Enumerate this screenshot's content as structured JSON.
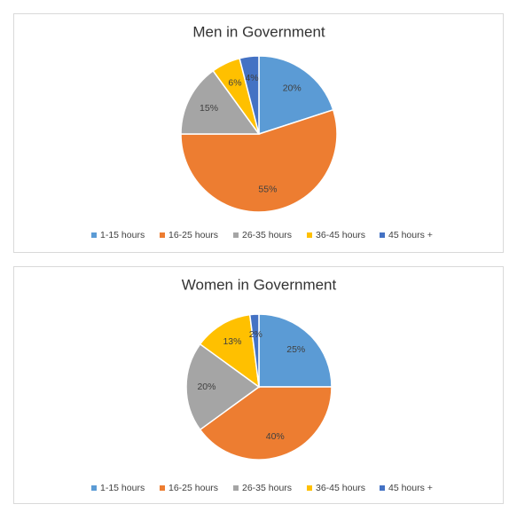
{
  "chart_data": [
    {
      "type": "pie",
      "title": "Men in Government",
      "categories": [
        "1-15 hours",
        "16-25 hours",
        "26-35 hours",
        "36-45 hours",
        "45 hours +"
      ],
      "values": [
        20,
        55,
        15,
        6,
        4
      ],
      "value_labels": [
        "20%",
        "55%",
        "15%",
        "6%",
        "4%"
      ],
      "colors": [
        "#5b9bd5",
        "#ed7d31",
        "#a5a5a5",
        "#ffc000",
        "#4472c4"
      ],
      "legend": "bottom"
    },
    {
      "type": "pie",
      "title": "Women in Government",
      "categories": [
        "1-15 hours",
        "16-25 hours",
        "26-35 hours",
        "36-45 hours",
        "45 hours +"
      ],
      "values": [
        25,
        40,
        20,
        13,
        2
      ],
      "value_labels": [
        "25%",
        "40%",
        "20%",
        "13%",
        "2%"
      ],
      "colors": [
        "#5b9bd5",
        "#ed7d31",
        "#a5a5a5",
        "#ffc000",
        "#4472c4"
      ],
      "legend": "bottom"
    }
  ]
}
